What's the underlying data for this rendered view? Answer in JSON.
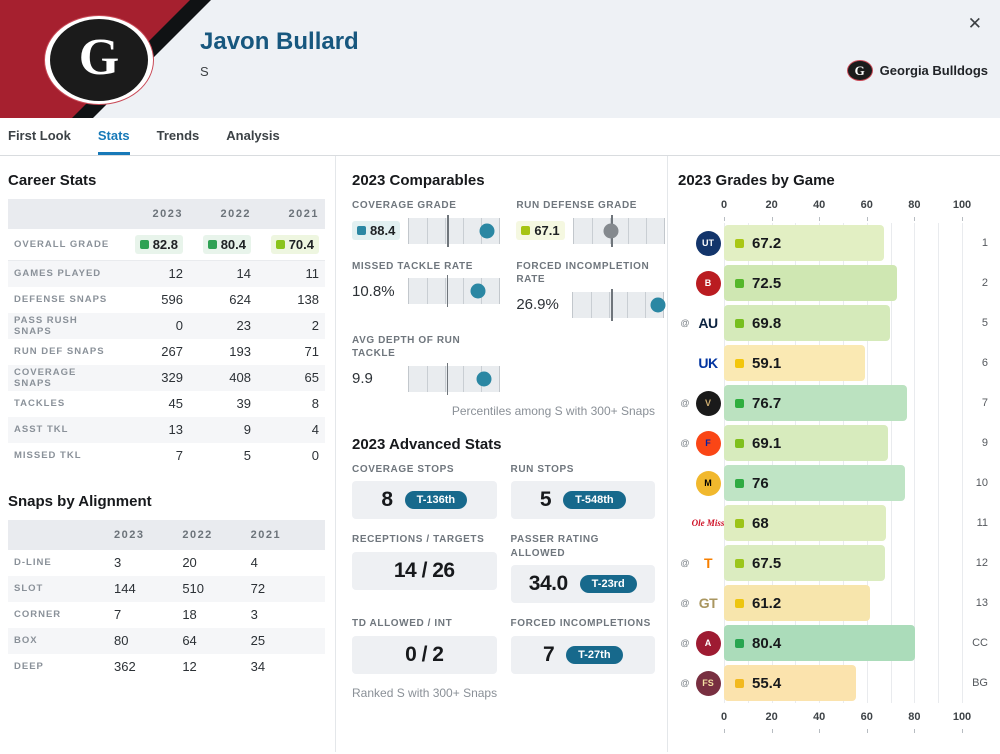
{
  "header": {
    "player_name": "Javon Bullard",
    "position": "S",
    "team_name": "Georgia Bulldogs",
    "team_logo_letter": "G",
    "close_icon": "✕"
  },
  "tabs": {
    "items": [
      "First Look",
      "Stats",
      "Trends",
      "Analysis"
    ],
    "active": "Stats"
  },
  "career_stats": {
    "title": "Career Stats",
    "years": [
      "2023",
      "2022",
      "2021"
    ],
    "grade_row": {
      "label": "OVERALL GRADE",
      "values": [
        {
          "text": "82.8",
          "dot": "#2fa254",
          "bg": "#e8f4eb"
        },
        {
          "text": "80.4",
          "dot": "#2fa254",
          "bg": "#e8f4eb"
        },
        {
          "text": "70.4",
          "dot": "#8ac41c",
          "bg": "#eef6e0"
        }
      ]
    },
    "rows": [
      {
        "label": "GAMES PLAYED",
        "values": [
          "12",
          "14",
          "11"
        ]
      },
      {
        "label": "DEFENSE SNAPS",
        "values": [
          "596",
          "624",
          "138"
        ]
      },
      {
        "label": "PASS RUSH SNAPS",
        "values": [
          "0",
          "23",
          "2"
        ]
      },
      {
        "label": "RUN DEF SNAPS",
        "values": [
          "267",
          "193",
          "71"
        ]
      },
      {
        "label": "COVERAGE SNAPS",
        "values": [
          "329",
          "408",
          "65"
        ]
      },
      {
        "label": "TACKLES",
        "values": [
          "45",
          "39",
          "8"
        ]
      },
      {
        "label": "ASST TKL",
        "values": [
          "13",
          "9",
          "4"
        ]
      },
      {
        "label": "MISSED TKL",
        "values": [
          "7",
          "5",
          "0"
        ]
      }
    ]
  },
  "snaps_by_alignment": {
    "title": "Snaps by Alignment",
    "years": [
      "2023",
      "2022",
      "2021"
    ],
    "rows": [
      {
        "label": "D-LINE",
        "values": [
          "3",
          "20",
          "4"
        ]
      },
      {
        "label": "SLOT",
        "values": [
          "144",
          "510",
          "72"
        ]
      },
      {
        "label": "CORNER",
        "values": [
          "7",
          "18",
          "3"
        ]
      },
      {
        "label": "BOX",
        "values": [
          "80",
          "64",
          "25"
        ]
      },
      {
        "label": "DEEP",
        "values": [
          "362",
          "12",
          "34"
        ]
      }
    ]
  },
  "comparables": {
    "title": "2023 Comparables",
    "footnote": "Percentiles among S with 300+ Snaps",
    "metrics": [
      {
        "label": "COVERAGE GRADE",
        "value": "88.4",
        "badge": {
          "dot": "#2b87a3",
          "bg": "#e2f0f1"
        },
        "percentile": 86,
        "dot_color": "#2b87a3"
      },
      {
        "label": "RUN DEFENSE GRADE",
        "value": "67.1",
        "badge": {
          "dot": "#a6c414",
          "bg": "#f5f8e1"
        },
        "percentile": 42,
        "dot_color": "#84898e"
      },
      {
        "label": "MISSED TACKLE RATE",
        "value": "10.8%",
        "percentile": 77,
        "dot_color": "#2b87a3"
      },
      {
        "label": "FORCED INCOMPLETION RATE",
        "value": "26.9%",
        "percentile": 94,
        "dot_color": "#2b87a3"
      },
      {
        "label": "AVG DEPTH OF RUN TACKLE",
        "value": "9.9",
        "percentile": 83,
        "dot_color": "#2b87a3"
      }
    ]
  },
  "advanced_stats": {
    "title": "2023 Advanced Stats",
    "footnote": "Ranked S with 300+ Snaps",
    "stats": [
      {
        "label": "COVERAGE STOPS",
        "value": "8",
        "rank": "T-136th"
      },
      {
        "label": "RUN STOPS",
        "value": "5",
        "rank": "T-548th"
      },
      {
        "label": "RECEPTIONS / TARGETS",
        "value": "14 / 26"
      },
      {
        "label": "PASSER RATING ALLOWED",
        "value": "34.0",
        "rank": "T-23rd"
      },
      {
        "label": "TD ALLOWED / INT",
        "value": "0 / 2"
      },
      {
        "label": "FORCED INCOMPLETIONS",
        "value": "7",
        "rank": "T-27th"
      }
    ]
  },
  "chart_data": {
    "type": "bar",
    "title": "2023 Grades by Game",
    "x_ticks": [
      0,
      20,
      40,
      60,
      80,
      100
    ],
    "xlim": [
      0,
      100
    ],
    "orientation": "horizontal",
    "games": [
      {
        "team": "UT Martin",
        "game_label": "1",
        "away": false,
        "value": 67.2,
        "display": "67.2",
        "bar_color": "#e2efc3",
        "dot_color": "#a9c715",
        "logo": {
          "style": "circle",
          "abbr": "UT",
          "bg": "#13356b",
          "fg": "#ffffff"
        }
      },
      {
        "team": "Ball State",
        "game_label": "2",
        "away": false,
        "value": 72.5,
        "display": "72.5",
        "bar_color": "#cfe7b2",
        "dot_color": "#55b72a",
        "logo": {
          "style": "circle",
          "abbr": "B",
          "bg": "#ba1c21",
          "fg": "#ffffff"
        }
      },
      {
        "team": "Auburn",
        "game_label": "5",
        "away": true,
        "value": 69.8,
        "display": "69.8",
        "bar_color": "#d5eaba",
        "dot_color": "#77bf1f",
        "logo": {
          "style": "text",
          "abbr": "AU",
          "bg": "",
          "fg": "#0c2340"
        }
      },
      {
        "team": "Kentucky",
        "game_label": "6",
        "away": false,
        "value": 59.1,
        "display": "59.1",
        "bar_color": "#fae9b3",
        "dot_color": "#f3c60b",
        "logo": {
          "style": "text",
          "abbr": "UK",
          "bg": "",
          "fg": "#0033a0"
        }
      },
      {
        "team": "Vanderbilt",
        "game_label": "7",
        "away": true,
        "value": 76.7,
        "display": "76.7",
        "bar_color": "#bbe2c0",
        "dot_color": "#2fae3e",
        "logo": {
          "style": "circle",
          "abbr": "V",
          "bg": "#1a1a1a",
          "fg": "#cfae70"
        }
      },
      {
        "team": "Florida",
        "game_label": "9",
        "away": true,
        "value": 69.1,
        "display": "69.1",
        "bar_color": "#d7ebbd",
        "dot_color": "#7fc01d",
        "logo": {
          "style": "circle",
          "abbr": "F",
          "bg": "#fa4616",
          "fg": "#0021a5"
        }
      },
      {
        "team": "Missouri",
        "game_label": "10",
        "away": false,
        "value": 76,
        "display": "76",
        "bar_color": "#bfe4c5",
        "dot_color": "#2fab42",
        "logo": {
          "style": "circle",
          "abbr": "M",
          "bg": "#f1b82d",
          "fg": "#000000"
        }
      },
      {
        "team": "Ole Miss",
        "game_label": "11",
        "away": false,
        "value": 68,
        "display": "68",
        "bar_color": "#dfedbf",
        "dot_color": "#9cc417",
        "logo": {
          "style": "script",
          "abbr": "Ole Miss",
          "bg": "",
          "fg": "#ce1126"
        }
      },
      {
        "team": "Tennessee",
        "game_label": "12",
        "away": true,
        "value": 67.5,
        "display": "67.5",
        "bar_color": "#dbecc0",
        "dot_color": "#9bc61b",
        "logo": {
          "style": "text",
          "abbr": "T",
          "bg": "",
          "fg": "#f77f00"
        }
      },
      {
        "team": "Georgia Tech",
        "game_label": "13",
        "away": true,
        "value": 61.2,
        "display": "61.2",
        "bar_color": "#f7e5ac",
        "dot_color": "#edc50e",
        "logo": {
          "style": "text",
          "abbr": "GT",
          "bg": "",
          "fg": "#a99660"
        }
      },
      {
        "team": "Alabama",
        "game_label": "CC",
        "away": true,
        "value": 80.4,
        "display": "80.4",
        "bar_color": "#abdcba",
        "dot_color": "#28a550",
        "logo": {
          "style": "circle",
          "abbr": "A",
          "bg": "#9e1b32",
          "fg": "#ffffff"
        }
      },
      {
        "team": "Florida State",
        "game_label": "BG",
        "away": true,
        "value": 55.4,
        "display": "55.4",
        "bar_color": "#fbe3ad",
        "dot_color": "#f2b91e",
        "logo": {
          "style": "circle",
          "abbr": "FS",
          "bg": "#782f40",
          "fg": "#f3dfa2"
        }
      }
    ]
  },
  "colors": {
    "accent_blue": "#1779b8",
    "header_red": "#a6202f",
    "player_name_blue": "#17577e",
    "rank_pill_teal": "#17698c",
    "percentile_dot_teal": "#2b87a3"
  }
}
